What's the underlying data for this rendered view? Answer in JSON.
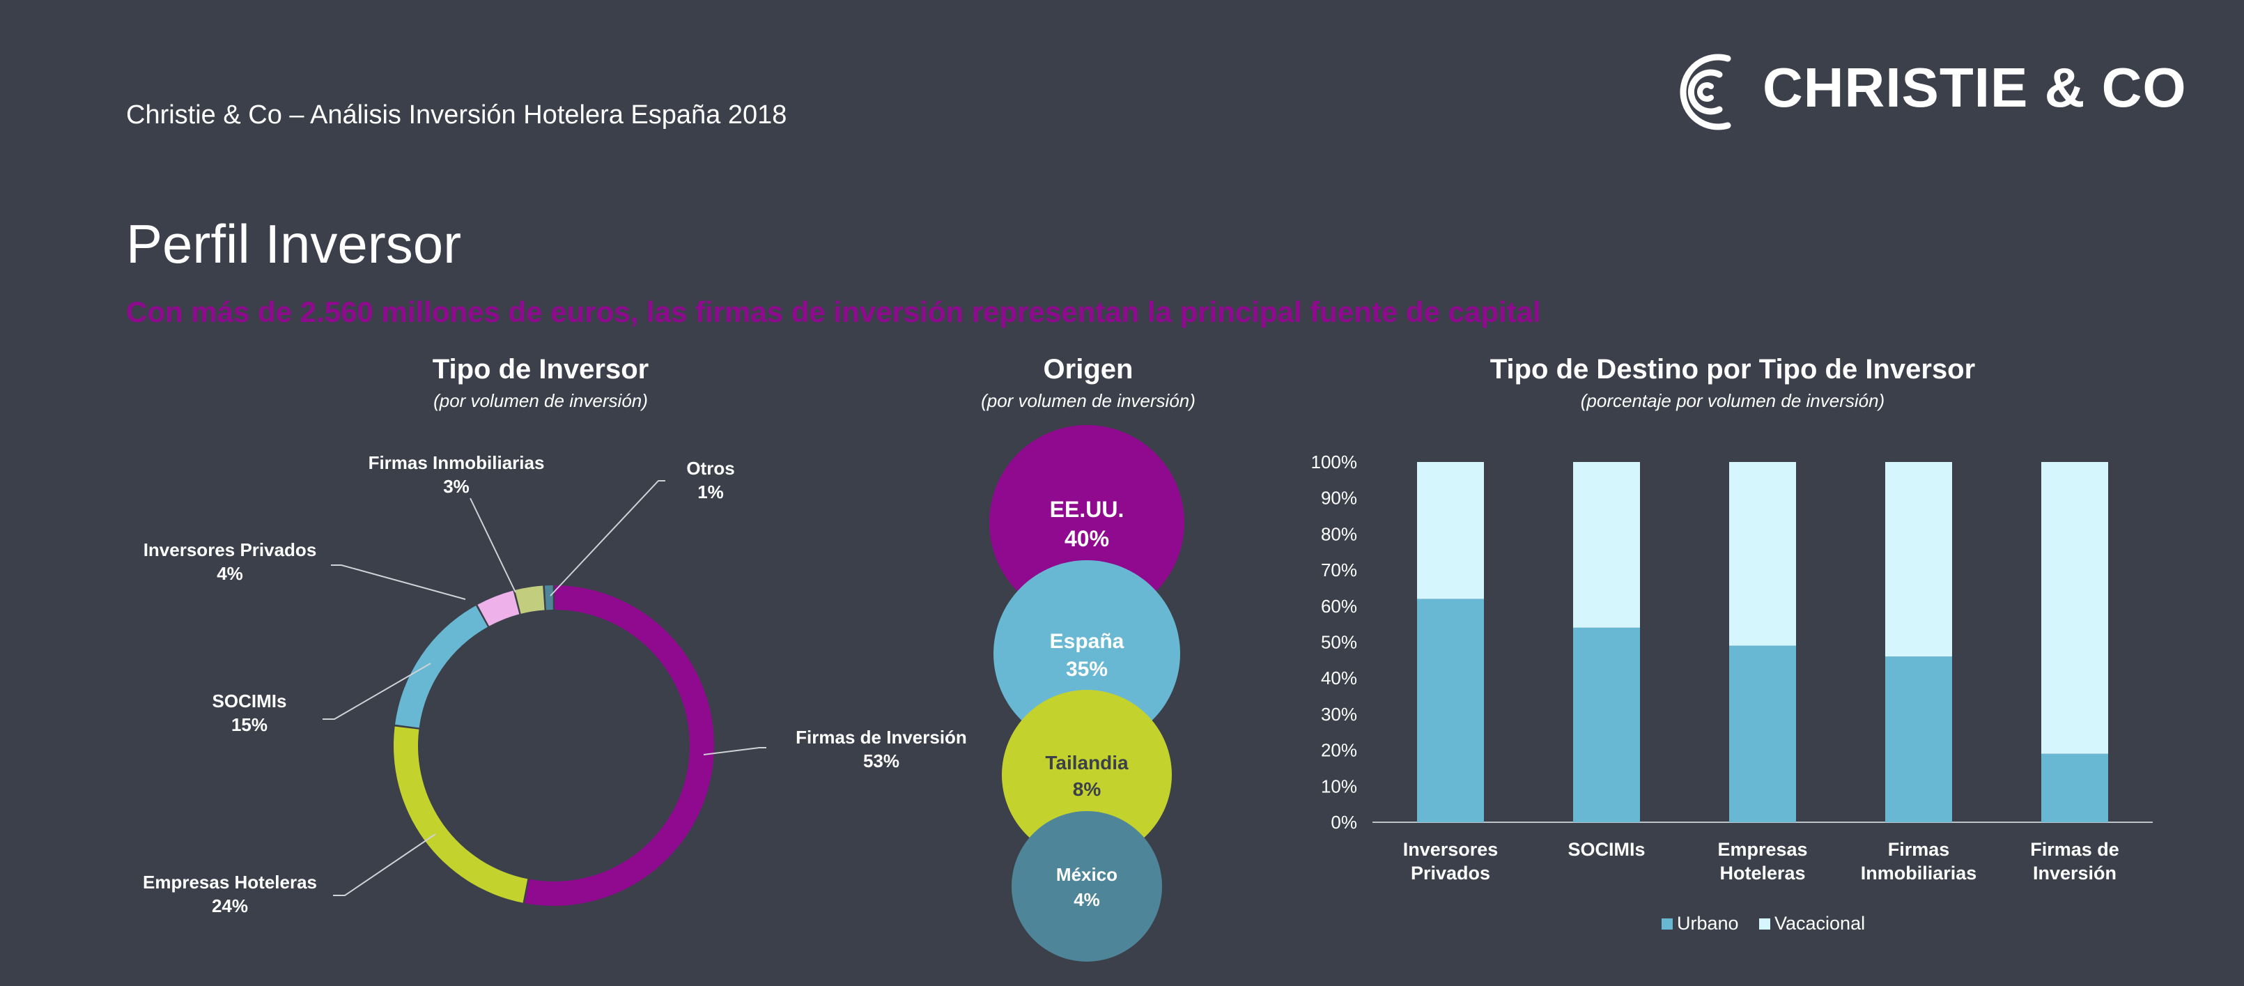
{
  "header": {
    "doc_title": "Christie & Co – Análisis Inversión Hotelera España 2018",
    "logo_text": "CHRISTIE & CO"
  },
  "page": {
    "title": "Perfil Inversor",
    "subtitle": "Con más de 2.560 millones de euros, las firmas de inversión representan la principal fuente de capital"
  },
  "colors": {
    "background": "#3b404a",
    "purple": "#8f0a8e",
    "blue": "#68b8d3",
    "lime": "#c4d22e",
    "pink": "#efb1ea",
    "olive": "#c2cd7d",
    "teal": "#4e8599",
    "light_blue": "#d4f6fc"
  },
  "chart_data": [
    {
      "type": "pie",
      "title": "Tipo de Inversor",
      "subtitle": "(por volumen de inversión)",
      "slices": [
        {
          "label": "Firmas de Inversión",
          "value": 53,
          "display": "53%",
          "color": "#8f0a8e"
        },
        {
          "label": "Empresas Hoteleras",
          "value": 24,
          "display": "24%",
          "color": "#c4d22e"
        },
        {
          "label": "SOCIMIs",
          "value": 15,
          "display": "15%",
          "color": "#68b8d3"
        },
        {
          "label": "Inversores Privados",
          "value": 4,
          "display": "4%",
          "color": "#efb1ea"
        },
        {
          "label": "Firmas Inmobiliarias",
          "value": 3,
          "display": "3%",
          "color": "#c2cd7d"
        },
        {
          "label": "Otros",
          "value": 1,
          "display": "1%",
          "color": "#4e8599"
        }
      ]
    },
    {
      "type": "bubble",
      "title": "Origen",
      "subtitle": "(por volumen de inversión)",
      "items": [
        {
          "label": "EE.UU.",
          "value": 40,
          "display": "40%",
          "color": "#8f0a8e"
        },
        {
          "label": "España",
          "value": 35,
          "display": "35%",
          "color": "#68b8d3"
        },
        {
          "label": "Tailandia",
          "value": 8,
          "display": "8%",
          "color": "#c4d22e"
        },
        {
          "label": "México",
          "value": 4,
          "display": "4%",
          "color": "#4e8599"
        }
      ]
    },
    {
      "type": "bar",
      "stacked": true,
      "title": "Tipo de Destino por Tipo de Inversor",
      "subtitle": "(porcentaje por volumen de inversión)",
      "categories": [
        [
          "Inversores",
          "Privados"
        ],
        [
          "SOCIMIs"
        ],
        [
          "Empresas",
          "Hoteleras"
        ],
        [
          "Firmas",
          "Inmobiliarias"
        ],
        [
          "Firmas de",
          "Inversión"
        ]
      ],
      "series": [
        {
          "name": "Urbano",
          "values": [
            62,
            54,
            49,
            46,
            19
          ],
          "color": "#68b8d3"
        },
        {
          "name": "Vacacional",
          "values": [
            38,
            46,
            51,
            54,
            81
          ],
          "color": "#d4f6fc"
        }
      ],
      "ylim": [
        0,
        100
      ],
      "yticks": [
        "0%",
        "10%",
        "20%",
        "30%",
        "40%",
        "50%",
        "60%",
        "70%",
        "80%",
        "90%",
        "100%"
      ],
      "legend_position": "bottom"
    }
  ]
}
